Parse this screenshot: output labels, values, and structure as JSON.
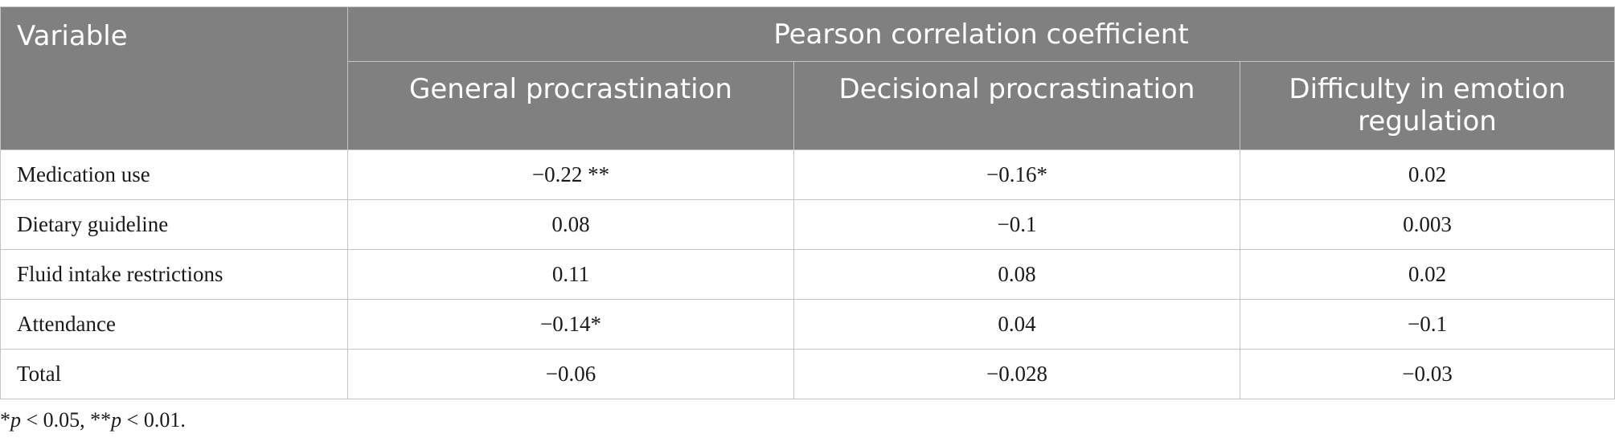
{
  "table": {
    "header": {
      "variable": "Variable",
      "group": "Pearson correlation coefficient",
      "columns": [
        "General procrastination",
        "Decisional procrastination",
        "Difficulty in emotion regulation"
      ]
    },
    "rows": [
      {
        "label": "Medication use",
        "values": [
          "−0.22 **",
          "−0.16*",
          "0.02"
        ]
      },
      {
        "label": "Dietary guideline",
        "values": [
          "0.08",
          "−0.1",
          "0.003"
        ]
      },
      {
        "label": "Fluid intake restrictions",
        "values": [
          "0.11",
          "0.08",
          "0.02"
        ]
      },
      {
        "label": "Attendance",
        "values": [
          "−0.14*",
          "0.04",
          "−0.1"
        ]
      },
      {
        "label": "Total",
        "values": [
          "−0.06",
          "−0.028",
          "−0.03"
        ]
      }
    ]
  },
  "footnote": {
    "s1": "*",
    "p1": "p",
    "t1": " < 0.05, **",
    "p2": "p",
    "t2": " < 0.01."
  }
}
